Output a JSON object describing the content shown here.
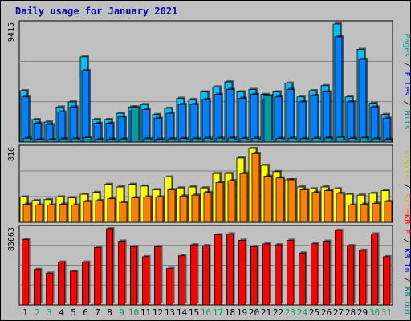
{
  "chart_data": {
    "type": "bar",
    "title": "Daily usage for January 2021",
    "days": [
      "1",
      "2",
      "3",
      "4",
      "5",
      "6",
      "7",
      "8",
      "9",
      "10",
      "11",
      "12",
      "13",
      "14",
      "15",
      "16",
      "17",
      "18",
      "19",
      "20",
      "21",
      "22",
      "23",
      "24",
      "25",
      "26",
      "27",
      "28",
      "29",
      "30",
      "31"
    ],
    "weekend_days": [
      "2",
      "3",
      "9",
      "10",
      "16",
      "17",
      "23",
      "24",
      "30",
      "31"
    ],
    "panels": [
      {
        "name": "pages-files-hits",
        "max_label": "9415",
        "ymax": 9415,
        "legend": [
          {
            "label": "Pages",
            "color": "#00a0a0"
          },
          {
            "label": "/",
            "color": "#000000"
          },
          {
            "label": "Files",
            "color": "#0000c0"
          },
          {
            "label": "/",
            "color": "#000000"
          },
          {
            "label": "Hits",
            "color": "#008080"
          }
        ],
        "series": [
          {
            "name": "Hits",
            "color": "#00c0ff",
            "values": [
              4100,
              1800,
              1600,
              2800,
              3200,
              6800,
              1800,
              1800,
              2300,
              2800,
              3000,
              2200,
              2700,
              3500,
              3400,
              4000,
              4400,
              4800,
              4000,
              4200,
              3800,
              4000,
              4700,
              3600,
              4100,
              4500,
              9415,
              3600,
              7400,
              3100,
              2200
            ]
          },
          {
            "name": "Files",
            "color": "#0080ff",
            "values": [
              3600,
              1500,
              1400,
              2400,
              2800,
              5700,
              1500,
              1500,
              2000,
              2500,
              2600,
              1900,
              2300,
              3000,
              3000,
              3400,
              3800,
              4200,
              3500,
              3800,
              3400,
              3600,
              4200,
              3200,
              3700,
              4000,
              8400,
              3200,
              6600,
              2800,
              1900
            ]
          },
          {
            "name": "Pages",
            "color": "#00a0a0",
            "values": [
              300,
              200,
              180,
              250,
              260,
              350,
              220,
              230,
              240,
              2800,
              260,
              230,
              250,
              280,
              270,
              300,
              310,
              320,
              290,
              300,
              3700,
              290,
              310,
              270,
              300,
              320,
              380,
              280,
              330,
              260,
              220
            ]
          }
        ]
      },
      {
        "name": "visits-sites",
        "max_label": "816",
        "ymax": 816,
        "legend": [
          {
            "label": "Visits",
            "color": "#c0c000"
          },
          {
            "label": "/",
            "color": "#000000"
          },
          {
            "label": "Sites",
            "color": "#ff8000"
          }
        ],
        "series": [
          {
            "name": "Visits",
            "color": "#ffff00",
            "values": [
              280,
              240,
              250,
              280,
              270,
              310,
              330,
              420,
              390,
              420,
              400,
              360,
              500,
              380,
              390,
              380,
              540,
              540,
              710,
              816,
              630,
              560,
              470,
              390,
              370,
              390,
              370,
              310,
              300,
              320,
              350
            ]
          },
          {
            "name": "Sites",
            "color": "#ff8000",
            "values": [
              200,
              190,
              190,
              200,
              190,
              230,
              240,
              260,
              220,
              270,
              280,
              280,
              360,
              290,
              300,
              330,
              440,
              460,
              540,
              760,
              510,
              490,
              470,
              360,
              330,
              350,
              320,
              190,
              200,
              210,
              230
            ]
          }
        ]
      },
      {
        "name": "kb-in-out-f",
        "max_label": "83663",
        "ymax": 83663,
        "legend": [
          {
            "label": "KB F",
            "color": "#ff0000"
          },
          {
            "label": "/",
            "color": "#000000"
          },
          {
            "label": "KB In",
            "color": "#0000c0"
          },
          {
            "label": "/",
            "color": "#000000"
          },
          {
            "label": "KB Out",
            "color": "#008080"
          }
        ],
        "series": [
          {
            "name": "KB F",
            "color": "#ff0000",
            "values": [
              72000,
              39000,
              35000,
              47000,
              37000,
              47000,
              63000,
              83663,
              70000,
              64000,
              53000,
              64000,
              40000,
              54000,
              66000,
              65000,
              77000,
              78000,
              71000,
              64000,
              67000,
              66000,
              71000,
              57000,
              67000,
              70000,
              82000,
              65000,
              60000,
              78000,
              53000
            ]
          }
        ]
      }
    ]
  }
}
